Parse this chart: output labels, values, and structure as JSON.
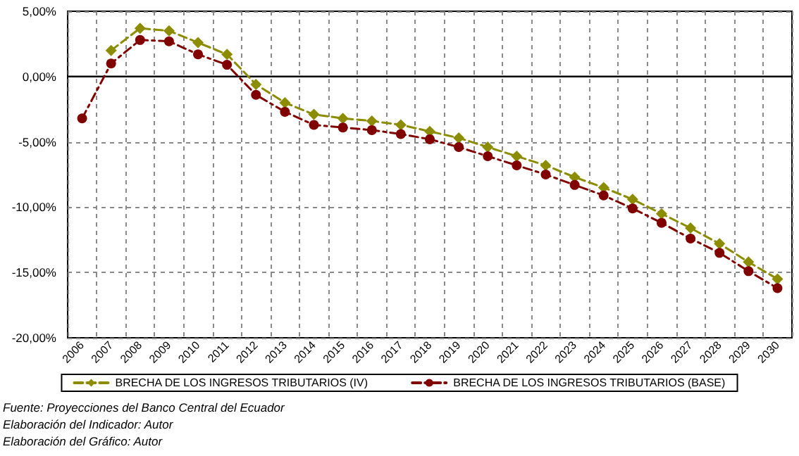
{
  "chart_data": {
    "type": "line",
    "categories": [
      "2006",
      "2007",
      "2008",
      "2009",
      "2010",
      "2011",
      "2012",
      "2013",
      "2014",
      "2015",
      "2016",
      "2017",
      "2018",
      "2019",
      "2020",
      "2021",
      "2022",
      "2023",
      "2024",
      "2025",
      "2026",
      "2027",
      "2028",
      "2029",
      "2030"
    ],
    "series": [
      {
        "name": "BRECHA DE LOS INGRESOS TRIBUTARIOS (IV)",
        "color": "#8c8c00",
        "marker": "diamond",
        "line_style": "dashed",
        "values": [
          null,
          2.0,
          3.7,
          3.5,
          2.6,
          1.7,
          -0.6,
          -2.0,
          -2.9,
          -3.2,
          -3.4,
          -3.7,
          -4.2,
          -4.7,
          -5.4,
          -6.1,
          -6.8,
          -7.7,
          -8.5,
          -9.4,
          -10.5,
          -11.6,
          -12.8,
          -14.2,
          -15.5
        ]
      },
      {
        "name": "BRECHA DE LOS INGRESOS TRIBUTARIOS (BASE)",
        "color": "#800000",
        "marker": "circle",
        "line_style": "dashdot",
        "values": [
          -3.2,
          1.0,
          2.8,
          2.7,
          1.7,
          0.9,
          -1.4,
          -2.7,
          -3.7,
          -3.9,
          -4.1,
          -4.4,
          -4.8,
          -5.4,
          -6.1,
          -6.8,
          -7.5,
          -8.3,
          -9.1,
          -10.1,
          -11.2,
          -12.4,
          -13.5,
          -14.9,
          -16.2
        ]
      }
    ],
    "ylim": [
      -20,
      5
    ],
    "yticks": [
      {
        "value": 5,
        "label": "5,00%"
      },
      {
        "value": 0,
        "label": "0,00%"
      },
      {
        "value": -5,
        "label": "-5,00%"
      },
      {
        "value": -10,
        "label": "-10,00%"
      },
      {
        "value": -15,
        "label": "-15,00%"
      },
      {
        "value": -20,
        "label": "-20,00%"
      }
    ],
    "grid": true,
    "legend": "bottom",
    "annotations": [
      "Fuente: Proyecciones del Banco Central del Ecuador",
      "Elaboración del Indicador: Autor",
      "Elaboración del Gráfico: Autor"
    ]
  }
}
